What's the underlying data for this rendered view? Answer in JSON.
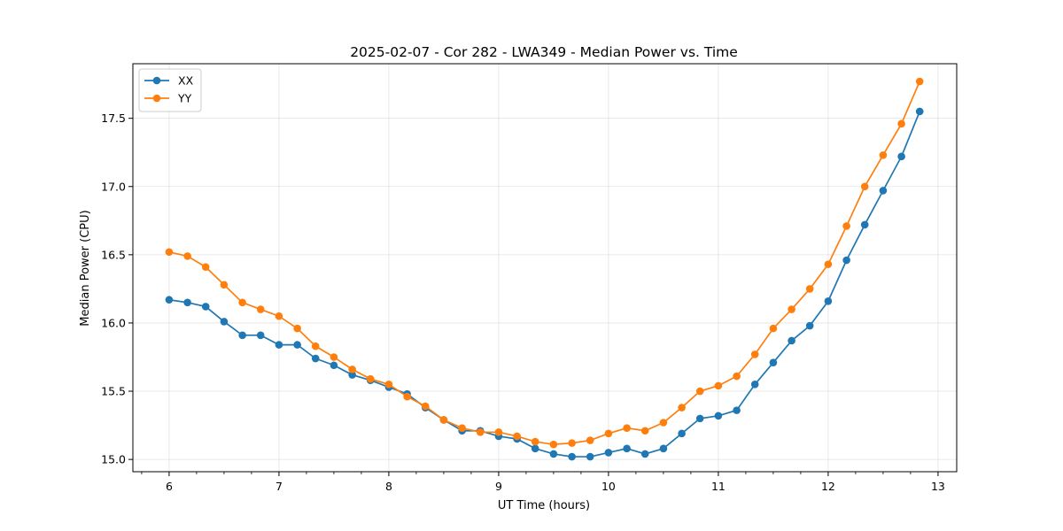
{
  "chart_data": {
    "type": "line",
    "title": "2025-02-07 - Cor 282 - LWA349 - Median Power vs. Time",
    "xlabel": "UT Time (hours)",
    "ylabel": "Median Power (CPU)",
    "xlim": [
      5.67,
      13.17
    ],
    "ylim": [
      14.91,
      17.9
    ],
    "xticks": [
      6,
      7,
      8,
      9,
      10,
      11,
      12,
      13
    ],
    "yticks": [
      15.0,
      15.5,
      16.0,
      16.5,
      17.0,
      17.5
    ],
    "ytick_labels": [
      "15.0",
      "15.5",
      "16.0",
      "16.5",
      "17.0",
      "17.5"
    ],
    "grid": true,
    "legend_position": "top-left",
    "x": [
      6.0,
      6.167,
      6.333,
      6.5,
      6.667,
      6.833,
      7.0,
      7.167,
      7.333,
      7.5,
      7.667,
      7.833,
      8.0,
      8.167,
      8.333,
      8.5,
      8.667,
      8.833,
      9.0,
      9.167,
      9.333,
      9.5,
      9.667,
      9.833,
      10.0,
      10.167,
      10.333,
      10.5,
      10.667,
      10.833,
      11.0,
      11.167,
      11.333,
      11.5,
      11.667,
      11.833,
      12.0,
      12.167,
      12.333,
      12.5,
      12.667,
      12.833
    ],
    "series": [
      {
        "name": "XX",
        "color": "#1f77b4",
        "values": [
          16.17,
          16.15,
          16.12,
          16.01,
          15.91,
          15.91,
          15.84,
          15.84,
          15.74,
          15.69,
          15.62,
          15.58,
          15.53,
          15.48,
          15.38,
          15.29,
          15.21,
          15.21,
          15.17,
          15.15,
          15.08,
          15.04,
          15.02,
          15.02,
          15.05,
          15.08,
          15.04,
          15.08,
          15.19,
          15.3,
          15.32,
          15.36,
          15.55,
          15.71,
          15.87,
          15.98,
          16.16,
          16.46,
          16.72,
          16.97,
          17.22,
          17.55
        ]
      },
      {
        "name": "YY",
        "color": "#ff7f0e",
        "values": [
          16.52,
          16.49,
          16.41,
          16.28,
          16.15,
          16.1,
          16.05,
          15.96,
          15.83,
          15.75,
          15.66,
          15.59,
          15.55,
          15.46,
          15.39,
          15.29,
          15.23,
          15.2,
          15.2,
          15.17,
          15.13,
          15.11,
          15.12,
          15.14,
          15.19,
          15.23,
          15.21,
          15.27,
          15.38,
          15.5,
          15.54,
          15.61,
          15.77,
          15.96,
          16.1,
          16.25,
          16.43,
          16.71,
          17.0,
          17.23,
          17.46,
          17.77
        ]
      }
    ]
  }
}
